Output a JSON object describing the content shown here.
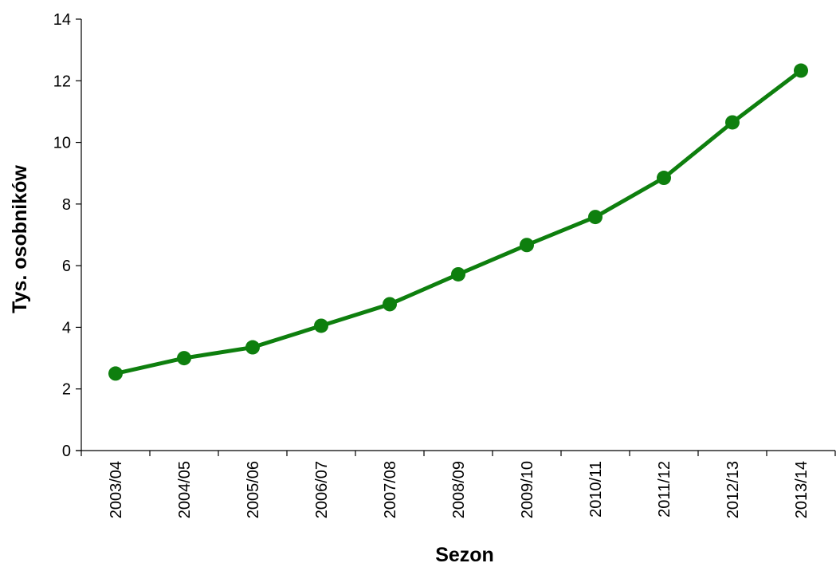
{
  "chart_data": {
    "type": "line",
    "title": "",
    "xlabel": "Sezon",
    "ylabel": "Tys. osobników",
    "categories": [
      "2003/04",
      "2004/05",
      "2005/06",
      "2006/07",
      "2007/08",
      "2008/09",
      "2009/10",
      "2010/11",
      "2011/12",
      "2012/13",
      "2013/14"
    ],
    "series": [
      {
        "values": [
          2.5,
          3.0,
          3.35,
          4.05,
          4.75,
          5.72,
          6.67,
          7.58,
          8.85,
          10.65,
          12.33
        ],
        "color": "#0e7f0e"
      }
    ],
    "ylim": [
      0,
      14
    ],
    "yticks": [
      0,
      2,
      4,
      6,
      8,
      10,
      12,
      14
    ],
    "grid": false,
    "legend": "none"
  }
}
